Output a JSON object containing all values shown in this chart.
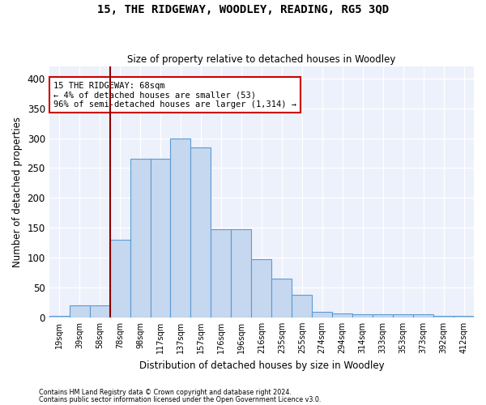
{
  "title": "15, THE RIDGEWAY, WOODLEY, READING, RG5 3QD",
  "subtitle": "Size of property relative to detached houses in Woodley",
  "xlabel": "Distribution of detached houses by size in Woodley",
  "ylabel": "Number of detached properties",
  "bar_color": "#c5d8ef",
  "bar_edge_color": "#5b9bd5",
  "background_color": "#edf1fb",
  "grid_color": "#ffffff",
  "categories": [
    "19sqm",
    "39sqm",
    "58sqm",
    "78sqm",
    "98sqm",
    "117sqm",
    "137sqm",
    "157sqm",
    "176sqm",
    "196sqm",
    "216sqm",
    "235sqm",
    "255sqm",
    "274sqm",
    "294sqm",
    "314sqm",
    "333sqm",
    "353sqm",
    "373sqm",
    "392sqm",
    "412sqm"
  ],
  "values": [
    3,
    20,
    20,
    130,
    265,
    265,
    300,
    285,
    147,
    147,
    98,
    65,
    38,
    9,
    6,
    5,
    5,
    5,
    5,
    3,
    2
  ],
  "property_label": "15 THE RIDGEWAY: 68sqm",
  "annotation_line1": "← 4% of detached houses are smaller (53)",
  "annotation_line2": "96% of semi-detached houses are larger (1,314) →",
  "vline_bin_index": 3,
  "ylim_max": 420,
  "yticks": [
    0,
    50,
    100,
    150,
    200,
    250,
    300,
    350,
    400
  ],
  "footnote1": "Contains HM Land Registry data © Crown copyright and database right 2024.",
  "footnote2": "Contains public sector information licensed under the Open Government Licence v3.0."
}
